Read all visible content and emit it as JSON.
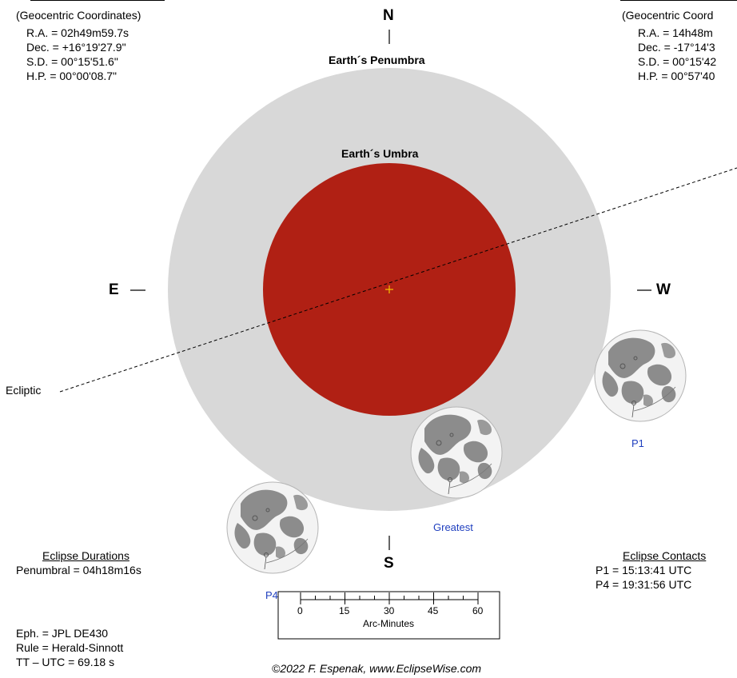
{
  "moon_panel": {
    "heading": "(Geocentric Coordinates)",
    "ra": "R.A. =  02h49m59.7s",
    "dec": "Dec. = +16°19'27.9\"",
    "sd": "S.D. =  00°15'51.6\"",
    "hp": "H.P. =  00°00'08.7\""
  },
  "sun_panel": {
    "heading": "(Geocentric Coord",
    "ra": "R.A. =  14h48m",
    "dec": "Dec. = -17°14'3",
    "sd": "S.D. =  00°15'42",
    "hp": "H.P. =  00°57'40"
  },
  "directions": {
    "north": "N",
    "south": "S",
    "east": "E",
    "west": "W"
  },
  "labels": {
    "penumbra": "Earth´s Penumbra",
    "umbra": "Earth´s Umbra",
    "ecliptic": "Ecliptic"
  },
  "moons": {
    "p1": "P1",
    "greatest": "Greatest",
    "p4": "P4"
  },
  "durations": {
    "heading": "Eclipse Durations",
    "penumbral": "Penumbral = 04h18m16s"
  },
  "contacts": {
    "heading": "Eclipse Contacts",
    "p1": "P1 = 15:13:41 UTC",
    "p4": "P4 = 19:31:56 UTC"
  },
  "ephemeris": {
    "eph": "Eph. = JPL DE430",
    "rule": "Rule = Herald-Sinnott",
    "tt": "TT – UTC =   69.18 s"
  },
  "scale": {
    "ticks": [
      "0",
      "15",
      "30",
      "45",
      "60"
    ],
    "label": "Arc-Minutes"
  },
  "credit": "©2022  F. Espenak, www.EclipseWise.com",
  "colors": {
    "penumbra": "#d8d8d8",
    "umbra": "#b02014",
    "center_mark": "#f5c400",
    "moon_face": "#f2f2f2",
    "moon_maria": "#8a8a8a",
    "contact_label": "#1f3fbf"
  }
}
